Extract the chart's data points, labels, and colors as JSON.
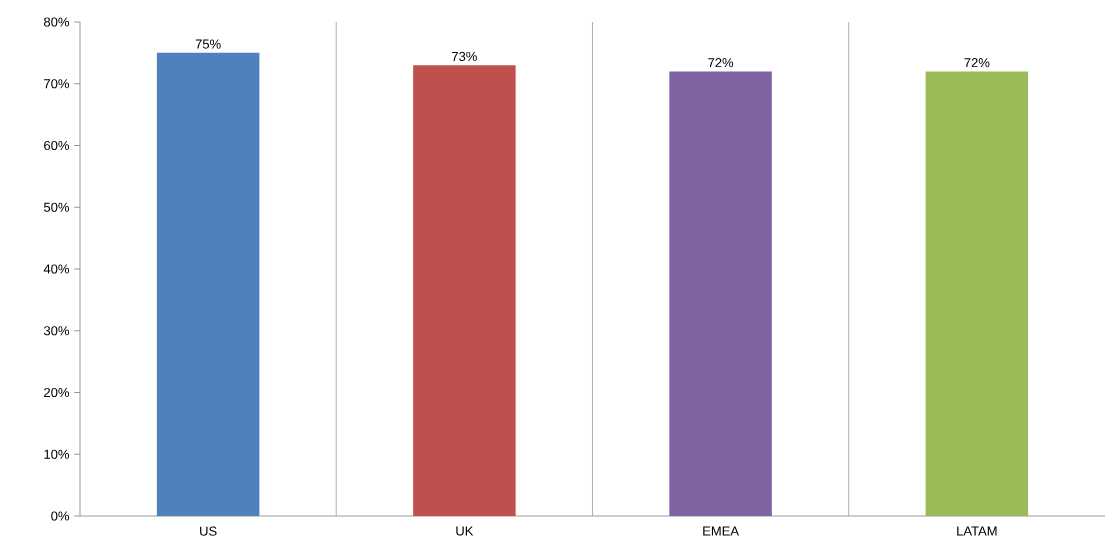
{
  "chart_data": {
    "type": "bar",
    "categories": [
      "US",
      "UK",
      "EMEA",
      "LATAM"
    ],
    "values": [
      75,
      73,
      72,
      72
    ],
    "colors": [
      "#4f81bd",
      "#c0504d",
      "#8064a2",
      "#9bbb59"
    ],
    "value_labels": [
      "75%",
      "73%",
      "72%",
      "72%"
    ],
    "ylim": [
      0,
      80
    ],
    "yticks": [
      {
        "value": 0,
        "label": "0%"
      },
      {
        "value": 10,
        "label": "10%"
      },
      {
        "value": 20,
        "label": "20%"
      },
      {
        "value": 30,
        "label": "30%"
      },
      {
        "value": 40,
        "label": "40%"
      },
      {
        "value": 50,
        "label": "50%"
      },
      {
        "value": 60,
        "label": "60%"
      },
      {
        "value": 70,
        "label": "70%"
      },
      {
        "value": 80,
        "label": "80%"
      }
    ],
    "grid": "x"
  }
}
